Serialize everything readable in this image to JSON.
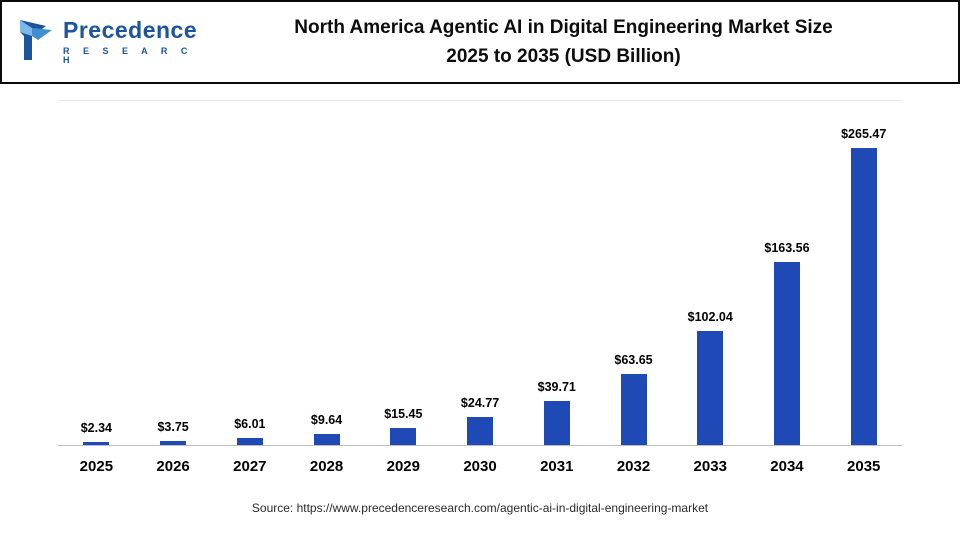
{
  "header": {
    "logo": {
      "name": "Precedence",
      "subname": "R E S E A R C H"
    },
    "title_line1": "North America Agentic AI in Digital Engineering Market Size",
    "title_line2": "2025 to 2035 (USD Billion)"
  },
  "chart_data": {
    "type": "bar",
    "title": "North America Agentic AI in Digital Engineering Market Size 2025 to 2035 (USD Billion)",
    "categories": [
      "2025",
      "2026",
      "2027",
      "2028",
      "2029",
      "2030",
      "2031",
      "2032",
      "2033",
      "2034",
      "2035"
    ],
    "values": [
      2.34,
      3.75,
      6.01,
      9.64,
      15.45,
      24.77,
      39.71,
      63.65,
      102.04,
      163.56,
      265.47
    ],
    "value_labels": [
      "$2.34",
      "$3.75",
      "$6.01",
      "$9.64",
      "$15.45",
      "$24.77",
      "$39.71",
      "$63.65",
      "$102.04",
      "$163.56",
      "$265.47"
    ],
    "xlabel": "",
    "ylabel": "",
    "ylim": [
      0,
      280
    ],
    "grid": false,
    "legend": "none",
    "bar_color": "#1f49b5"
  },
  "footer": {
    "source": "Source: https://www.precedenceresearch.com/agentic-ai-in-digital-engineering-market"
  },
  "colors": {
    "accent_blue": "#1f49b5",
    "logo_blue": "#1c549e",
    "border_black": "#0a0a0a"
  }
}
